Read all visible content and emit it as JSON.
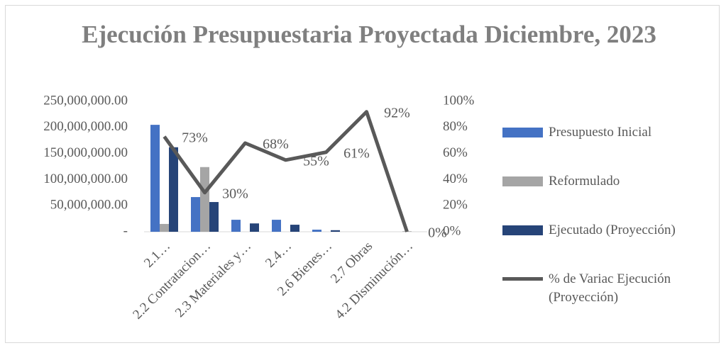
{
  "chart_data": {
    "type": "bar",
    "title": "Ejecución Presupuestaria Proyectada Diciembre, 2023",
    "categories": [
      "2.1…",
      "2.2 Contratacion…",
      "2.3 Materiales y…",
      "2.4…",
      "2.6 Bienes…",
      "2.7 Obras",
      "4.2 Disminución…"
    ],
    "series": [
      {
        "name": "Presupuesto Inicial",
        "color": "#4472c4",
        "axis": "y",
        "values": [
          205000000,
          66500000,
          23000000,
          23000000,
          4000000,
          0,
          0
        ]
      },
      {
        "name": "Reformulado",
        "color": "#a5a5a5",
        "axis": "y",
        "values": [
          15000000,
          124000000,
          0,
          0,
          0,
          0,
          1000000
        ]
      },
      {
        "name": "Ejecutado (Proyección)",
        "color": "#264478",
        "axis": "y",
        "values": [
          162000000,
          57000000,
          16000000,
          13500000,
          3000000,
          0,
          0
        ]
      },
      {
        "name": "% de Variac Ejecución (Proyección)",
        "color": "#595959",
        "axis": "y2",
        "type": "line",
        "values": [
          73,
          30,
          68,
          55,
          61,
          92,
          0
        ],
        "value_labels": [
          "73%",
          "30%",
          "68%",
          "55%",
          "61%",
          "92%",
          "0%"
        ]
      }
    ],
    "ylim": [
      0,
      250000000
    ],
    "yticks": [
      {
        "value": 0,
        "label": "-"
      },
      {
        "value": 50000000,
        "label": "50,000,000.00"
      },
      {
        "value": 100000000,
        "label": "100,000,000.00"
      },
      {
        "value": 150000000,
        "label": "150,000,000.00"
      },
      {
        "value": 200000000,
        "label": "200,000,000.00"
      },
      {
        "value": 250000000,
        "label": "250,000,000.00"
      }
    ],
    "y2lim": [
      0,
      100
    ],
    "y2ticks": [
      {
        "value": 0,
        "label": "0%"
      },
      {
        "value": 20,
        "label": "20%"
      },
      {
        "value": 40,
        "label": "40%"
      },
      {
        "value": 60,
        "label": "60%"
      },
      {
        "value": 80,
        "label": "80%"
      },
      {
        "value": 100,
        "label": "100%"
      }
    ],
    "grid": false,
    "legend": "right"
  }
}
